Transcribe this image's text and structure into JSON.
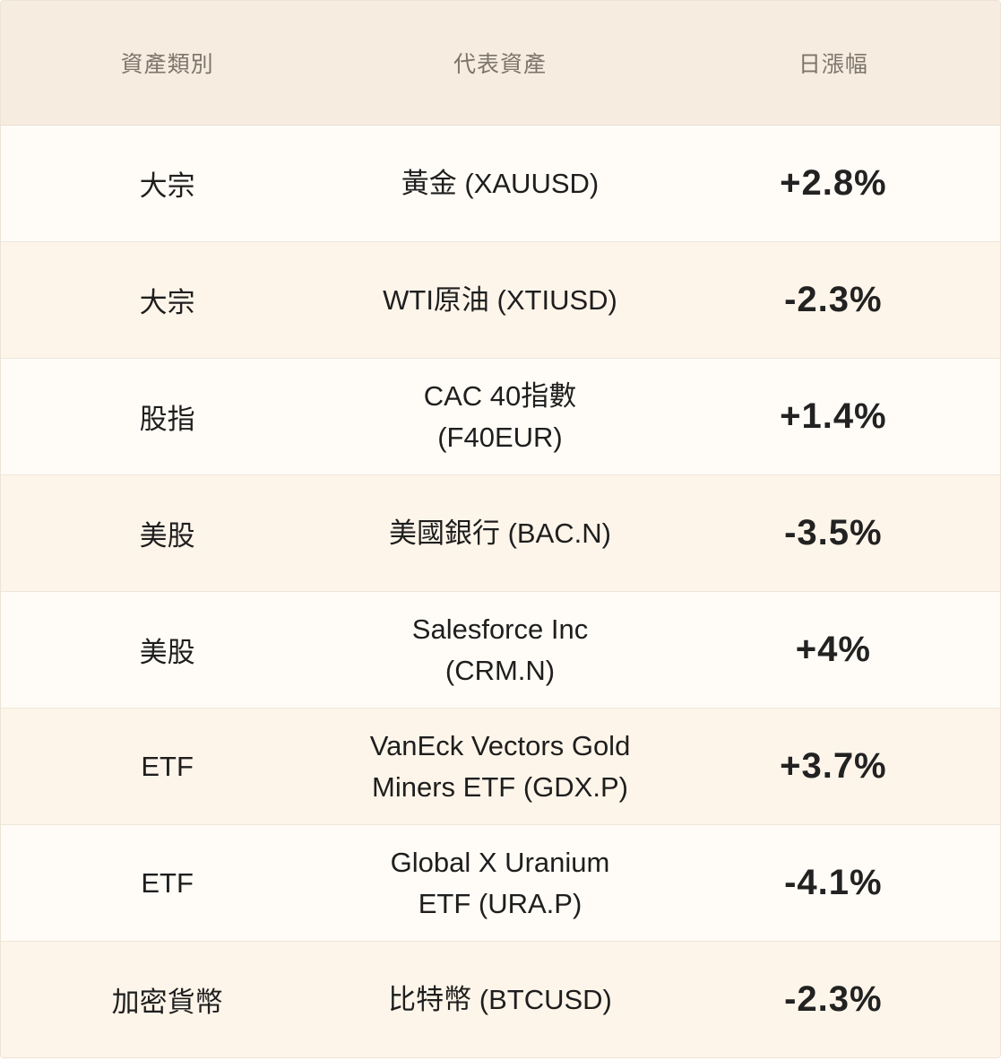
{
  "table": {
    "headers": [
      "資產類別",
      "代表資產",
      "日漲幅"
    ],
    "rows": [
      {
        "category": "大宗",
        "asset": "黃金 (XAUUSD)",
        "change": "+2.8%"
      },
      {
        "category": "大宗",
        "asset": "WTI原油 (XTIUSD)",
        "change": "-2.3%"
      },
      {
        "category": "股指",
        "asset": "CAC 40指數 (F40EUR)",
        "change": "+1.4%"
      },
      {
        "category": "美股",
        "asset": "美國銀行 (BAC.N)",
        "change": "-3.5%"
      },
      {
        "category": "美股",
        "asset": "Salesforce Inc (CRM.N)",
        "change": "+4%"
      },
      {
        "category": "ETF",
        "asset": "VanEck Vectors Gold Miners ETF (GDX.P)",
        "change": "+3.7%"
      },
      {
        "category": "ETF",
        "asset": "Global X Uranium ETF (URA.P)",
        "change": "-4.1%"
      },
      {
        "category": "加密貨幣",
        "asset": "比特幣 (BTCUSD)",
        "change": "-2.3%"
      }
    ]
  },
  "colors": {
    "header_bg": "#f7ece0",
    "row_odd_bg": "#fffcf7",
    "row_even_bg": "#fef5ea",
    "header_text": "#7d746a",
    "body_text": "#1e1e1e"
  }
}
